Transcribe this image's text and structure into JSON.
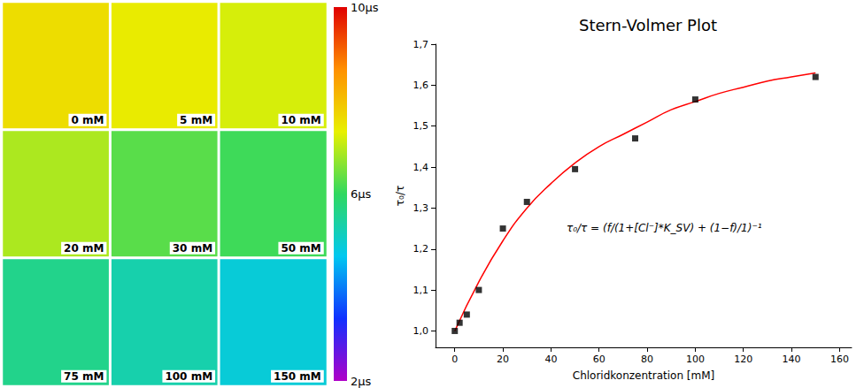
{
  "chart_data": [
    {
      "type": "heatmap",
      "panels": [
        {
          "label": "0 mM",
          "lifetime": 7.6
        },
        {
          "label": "5 mM",
          "lifetime": 7.4
        },
        {
          "label": "10 mM",
          "lifetime": 7.2
        },
        {
          "label": "20 mM",
          "lifetime": 6.9
        },
        {
          "label": "30 mM",
          "lifetime": 6.3
        },
        {
          "label": "50 mM",
          "lifetime": 6.1
        },
        {
          "label": "75 mM",
          "lifetime": 5.6
        },
        {
          "label": "100 mM",
          "lifetime": 5.3
        },
        {
          "label": "150 mM",
          "lifetime": 4.9
        }
      ],
      "colorbar": {
        "range": [
          2,
          10
        ],
        "ticks": [
          {
            "value": 10,
            "label": "10µs"
          },
          {
            "value": 6,
            "label": "6µs"
          },
          {
            "value": 2,
            "label": "2µs"
          }
        ]
      }
    },
    {
      "type": "scatter",
      "title": "Stern-Volmer Plot",
      "x_label": "Chloridkonzentration [mM]",
      "y_label": "τ₀/τ",
      "annotation": "τ₀/τ = (f/(1+[Cl⁻]*K_SV) + (1−f)/1)⁻¹",
      "xlim": [
        -8,
        165
      ],
      "xticks": [
        0,
        20,
        40,
        60,
        80,
        100,
        120,
        140,
        160
      ],
      "ylim": [
        0.96,
        1.7
      ],
      "yticks": [
        {
          "value": 1.0,
          "label": "1,0"
        },
        {
          "value": 1.1,
          "label": "1,1"
        },
        {
          "value": 1.2,
          "label": "1,2"
        },
        {
          "value": 1.3,
          "label": "1,3"
        },
        {
          "value": 1.4,
          "label": "1,4"
        },
        {
          "value": 1.5,
          "label": "1,5"
        },
        {
          "value": 1.6,
          "label": "1,6"
        },
        {
          "value": 1.7,
          "label": "1,7"
        }
      ],
      "grid": false,
      "series": [
        {
          "type": "scatter",
          "marker": "square",
          "color": "#000000",
          "x": [
            0,
            2,
            5,
            10,
            20,
            30,
            50,
            75,
            100,
            150
          ],
          "values": [
            1.0,
            1.02,
            1.04,
            1.1,
            1.25,
            1.315,
            1.395,
            1.47,
            1.565,
            1.62
          ]
        },
        {
          "type": "line",
          "line_style": "solid",
          "color": "#ff0000",
          "x": [
            0,
            10,
            20,
            30,
            40,
            50,
            60,
            70,
            80,
            90,
            100,
            110,
            120,
            130,
            140,
            150
          ],
          "values": [
            1.0,
            1.12,
            1.22,
            1.3,
            1.36,
            1.41,
            1.45,
            1.48,
            1.51,
            1.54,
            1.56,
            1.58,
            1.595,
            1.61,
            1.62,
            1.63
          ]
        }
      ]
    }
  ]
}
